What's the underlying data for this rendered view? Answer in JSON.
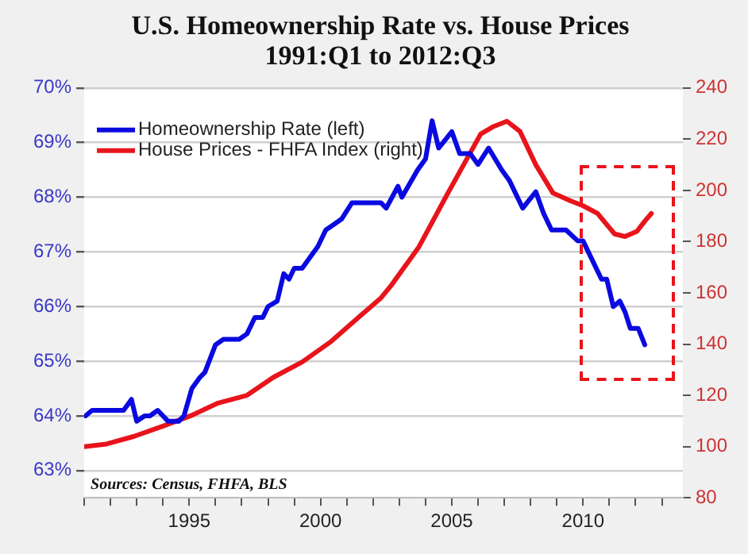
{
  "chart_data": {
    "type": "line",
    "title": [
      "U.S. Homeownership Rate vs. House Prices",
      "1991:Q1 to 2012:Q3"
    ],
    "xlim": [
      1991,
      2013.8
    ],
    "xticks": [
      {
        "value": 1991,
        "label": null
      },
      {
        "value": 1992,
        "label": null
      },
      {
        "value": 1993,
        "label": null
      },
      {
        "value": 1994,
        "label": null
      },
      {
        "value": 1995,
        "label": "1995"
      },
      {
        "value": 1996,
        "label": null
      },
      {
        "value": 1997,
        "label": null
      },
      {
        "value": 1998,
        "label": null
      },
      {
        "value": 1999,
        "label": null
      },
      {
        "value": 2000,
        "label": "2000"
      },
      {
        "value": 2001,
        "label": null
      },
      {
        "value": 2002,
        "label": null
      },
      {
        "value": 2003,
        "label": null
      },
      {
        "value": 2004,
        "label": null
      },
      {
        "value": 2005,
        "label": "2005"
      },
      {
        "value": 2006,
        "label": null
      },
      {
        "value": 2007,
        "label": null
      },
      {
        "value": 2008,
        "label": null
      },
      {
        "value": 2009,
        "label": null
      },
      {
        "value": 2010,
        "label": "2010"
      },
      {
        "value": 2011,
        "label": null
      },
      {
        "value": 2012,
        "label": null
      },
      {
        "value": 2013,
        "label": null
      }
    ],
    "ylim": [
      62.5,
      70
    ],
    "yticks": [
      {
        "value": 63,
        "label": "63%"
      },
      {
        "value": 64,
        "label": "64%"
      },
      {
        "value": 65,
        "label": "65%"
      },
      {
        "value": 66,
        "label": "66%"
      },
      {
        "value": 67,
        "label": "67%"
      },
      {
        "value": 68,
        "label": "68%"
      },
      {
        "value": 69,
        "label": "69%"
      },
      {
        "value": 70,
        "label": "70%"
      }
    ],
    "y2lim": [
      80,
      240
    ],
    "y2ticks": [
      80,
      100,
      120,
      140,
      160,
      180,
      200,
      220,
      240
    ],
    "grid": "y",
    "legend": "top left",
    "annotations": [
      "Sources: Census, FHFA, BLS"
    ],
    "series": [
      {
        "name": "Homeownership Rate (left)",
        "color": "#0a0ae0",
        "x": [
          1991.05,
          1991.3,
          1992.5,
          1992.8,
          1993.0,
          1993.3,
          1993.5,
          1993.8,
          1994.2,
          1994.6,
          1994.8,
          1995.1,
          1995.4,
          1995.6,
          1996.0,
          1996.3,
          1996.9,
          1997.2,
          1997.5,
          1997.8,
          1998.0,
          1998.35,
          1998.6,
          1998.8,
          1999.0,
          1999.3,
          1999.6,
          1999.9,
          2000.2,
          2000.5,
          2000.8,
          2001.2,
          2002.3,
          2002.5,
          2002.95,
          2003.1,
          2003.7,
          2004.0,
          2004.25,
          2004.5,
          2005.0,
          2005.3,
          2005.7,
          2006.0,
          2006.4,
          2006.9,
          2007.2,
          2007.7,
          2008.2,
          2008.5,
          2008.8,
          2009.35,
          2009.8,
          2010.0,
          2010.4,
          2010.7,
          2010.9,
          2011.15,
          2011.4,
          2011.6,
          2011.8,
          2012.1,
          2012.35
        ],
        "values": [
          64.0,
          64.1,
          64.1,
          64.3,
          63.9,
          64.0,
          64.0,
          64.1,
          63.9,
          63.9,
          64.0,
          64.5,
          64.7,
          64.8,
          65.3,
          65.4,
          65.4,
          65.5,
          65.8,
          65.8,
          66.0,
          66.1,
          66.6,
          66.5,
          66.7,
          66.7,
          66.9,
          67.1,
          67.4,
          67.5,
          67.6,
          67.9,
          67.9,
          67.8,
          68.2,
          68.0,
          68.5,
          68.7,
          69.4,
          68.9,
          69.2,
          68.8,
          68.8,
          68.6,
          68.9,
          68.5,
          68.3,
          67.8,
          68.1,
          67.7,
          67.4,
          67.4,
          67.2,
          67.2,
          66.8,
          66.5,
          66.5,
          66.0,
          66.1,
          65.9,
          65.6,
          65.6,
          65.3
        ]
      },
      {
        "name": "House Prices - FHFA Index (right)",
        "color": "#e8141c",
        "axis": "y2",
        "x": [
          1991.0,
          1991.85,
          1992.9,
          1994.0,
          1995.05,
          1996.1,
          1997.2,
          1998.2,
          1999.3,
          2000.4,
          2001.4,
          2002.3,
          2002.7,
          2003.75,
          2004.8,
          2006.1,
          2006.6,
          2007.1,
          2007.6,
          2008.2,
          2008.85,
          2009.5,
          2010.0,
          2010.55,
          2011.2,
          2011.6,
          2012.05,
          2012.35,
          2012.6
        ],
        "values": [
          100,
          101,
          104,
          108,
          112,
          117,
          120,
          127,
          133,
          141,
          150,
          158,
          163,
          178,
          198,
          222,
          225,
          227,
          223,
          210,
          199,
          196,
          194,
          191,
          183,
          182,
          184,
          188,
          191
        ]
      }
    ]
  }
}
